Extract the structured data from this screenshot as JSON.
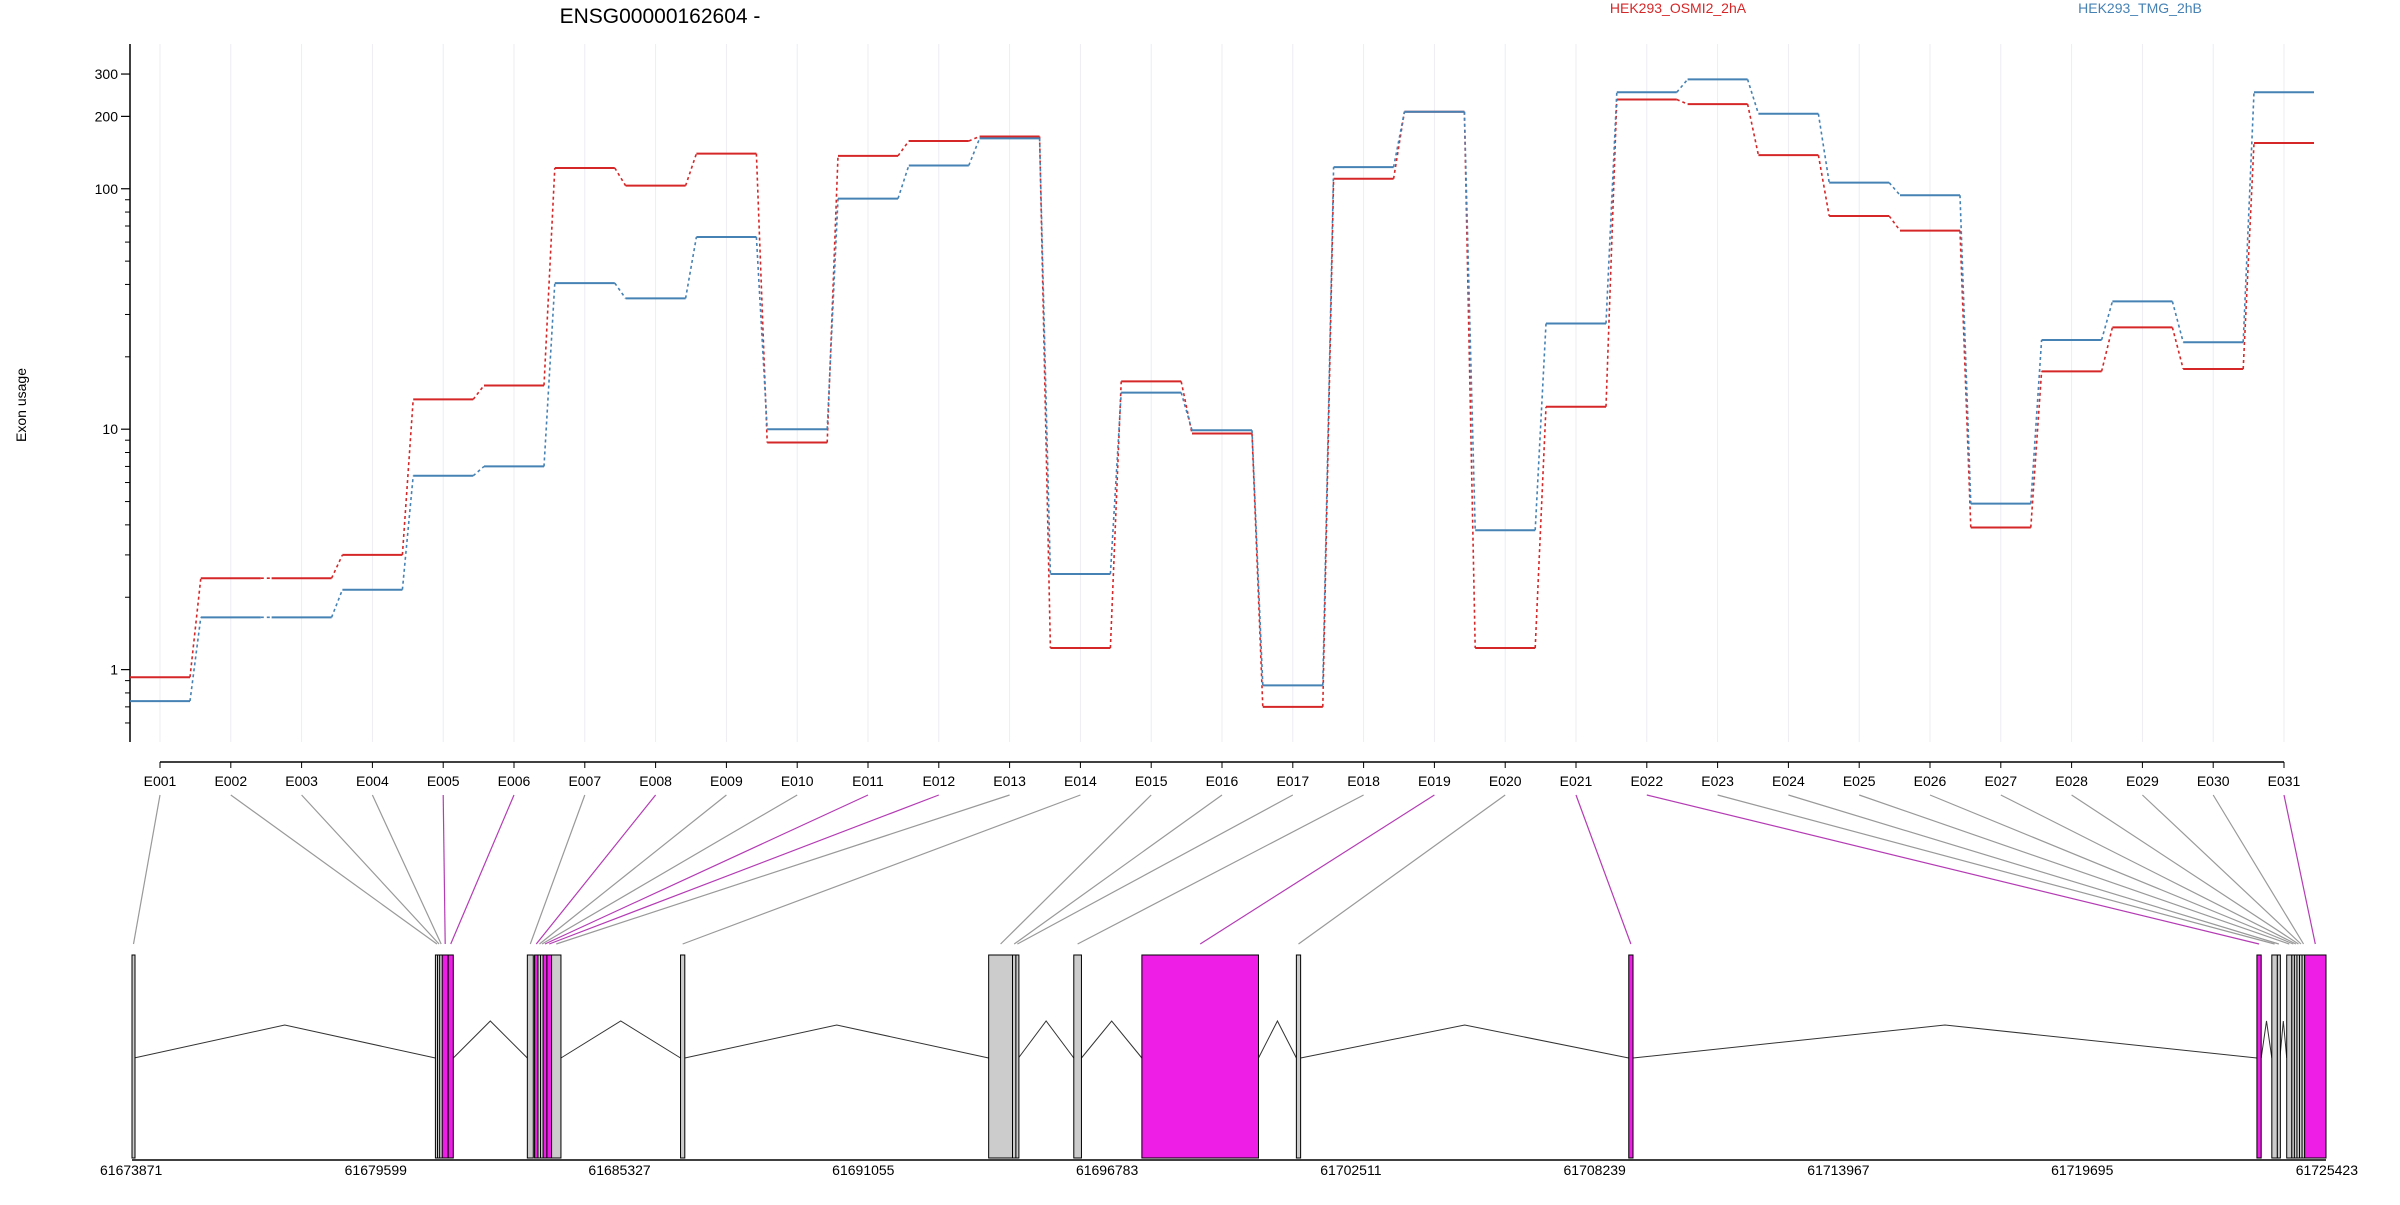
{
  "chart_data": {
    "type": "line",
    "title": "ENSG00000162604 -",
    "ylabel": "Exon usage",
    "yscale": "log",
    "ylim": [
      0.5,
      400
    ],
    "yticks": [
      1,
      10,
      100,
      200,
      300
    ],
    "grid": "vertical",
    "legend_position": "top",
    "categories": [
      "E001",
      "E002",
      "E003",
      "E004",
      "E005",
      "E006",
      "E007",
      "E008",
      "E009",
      "E010",
      "E011",
      "E012",
      "E013",
      "E014",
      "E015",
      "E016",
      "E017",
      "E018",
      "E019",
      "E020",
      "E021",
      "E022",
      "E023",
      "E024",
      "E025",
      "E026",
      "E027",
      "E028",
      "E029",
      "E030",
      "E031"
    ],
    "series": [
      {
        "name": "HEK293_OSMI2_2hA",
        "color": "#d62728",
        "values": [
          0.93,
          2.4,
          2.4,
          3.0,
          13.3,
          15.2,
          122,
          103,
          140,
          8.8,
          137,
          158,
          165,
          1.23,
          15.8,
          9.6,
          0.7,
          110,
          209,
          1.23,
          12.4,
          235,
          225,
          138,
          77,
          67,
          3.9,
          17.4,
          26.5,
          17.8,
          155
        ]
      },
      {
        "name": "HEK293_TMG_2hB",
        "color": "#4682b4",
        "values": [
          0.74,
          1.65,
          1.65,
          2.15,
          6.4,
          7.0,
          40.5,
          35,
          63,
          10.0,
          91,
          125,
          162,
          2.5,
          14.2,
          9.9,
          0.86,
          123,
          209,
          3.8,
          27.5,
          252,
          285,
          205,
          106,
          94,
          4.9,
          23.5,
          34,
          23,
          252
        ]
      }
    ],
    "gene_axis_ticks": [
      "61673871",
      "61679599",
      "61685327",
      "61691055",
      "61696783",
      "61702511",
      "61708239",
      "61713967",
      "61719695",
      "61725423"
    ],
    "gene_start": 61673871,
    "gene_end": 61725423,
    "highlight_color": "#ee1ee6",
    "exon_color": "#cccccc",
    "exons": [
      {
        "id": "E001",
        "start": 61673871,
        "end": 61673920,
        "diff": false
      },
      {
        "id": "E002",
        "start": 61681000,
        "end": 61681050,
        "diff": false
      },
      {
        "id": "E003",
        "start": 61681050,
        "end": 61681100,
        "diff": false
      },
      {
        "id": "E004",
        "start": 61681100,
        "end": 61681160,
        "diff": false
      },
      {
        "id": "E005",
        "start": 61681160,
        "end": 61681300,
        "diff": true
      },
      {
        "id": "E006",
        "start": 61681300,
        "end": 61681420,
        "diff": true
      },
      {
        "id": "E007",
        "start": 61683160,
        "end": 61683300,
        "diff": false
      },
      {
        "id": "E008",
        "start": 61683330,
        "end": 61683410,
        "diff": true
      },
      {
        "id": "E009",
        "start": 61683410,
        "end": 61683470,
        "diff": false
      },
      {
        "id": "E010",
        "start": 61683470,
        "end": 61683530,
        "diff": false
      },
      {
        "id": "E011",
        "start": 61683530,
        "end": 61683620,
        "diff": true
      },
      {
        "id": "E012",
        "start": 61683620,
        "end": 61683730,
        "diff": true
      },
      {
        "id": "E013",
        "start": 61683730,
        "end": 61683950,
        "diff": false
      },
      {
        "id": "E014",
        "start": 61686760,
        "end": 61686860,
        "diff": false
      },
      {
        "id": "E015",
        "start": 61694000,
        "end": 61694560,
        "diff": false
      },
      {
        "id": "E016",
        "start": 61694560,
        "end": 61694640,
        "diff": false
      },
      {
        "id": "E017",
        "start": 61694640,
        "end": 61694700,
        "diff": false
      },
      {
        "id": "E018",
        "start": 61696000,
        "end": 61696180,
        "diff": false
      },
      {
        "id": "E019",
        "start": 61697600,
        "end": 61700340,
        "diff": true
      },
      {
        "id": "E020",
        "start": 61701230,
        "end": 61701330,
        "diff": false
      },
      {
        "id": "E021",
        "start": 61709040,
        "end": 61709140,
        "diff": true
      },
      {
        "id": "E022",
        "start": 61723800,
        "end": 61723900,
        "diff": true
      },
      {
        "id": "E023",
        "start": 61724150,
        "end": 61724280,
        "diff": false
      },
      {
        "id": "E024",
        "start": 61724280,
        "end": 61724340,
        "diff": false
      },
      {
        "id": "E025",
        "start": 61724500,
        "end": 61724620,
        "diff": false
      },
      {
        "id": "E026",
        "start": 61724620,
        "end": 61724680,
        "diff": false
      },
      {
        "id": "E027",
        "start": 61724680,
        "end": 61724740,
        "diff": false
      },
      {
        "id": "E028",
        "start": 61724740,
        "end": 61724800,
        "diff": false
      },
      {
        "id": "E029",
        "start": 61724800,
        "end": 61724860,
        "diff": false
      },
      {
        "id": "E030",
        "start": 61724860,
        "end": 61724920,
        "diff": false
      },
      {
        "id": "E031",
        "start": 61724920,
        "end": 61725423,
        "diff": true
      }
    ]
  }
}
